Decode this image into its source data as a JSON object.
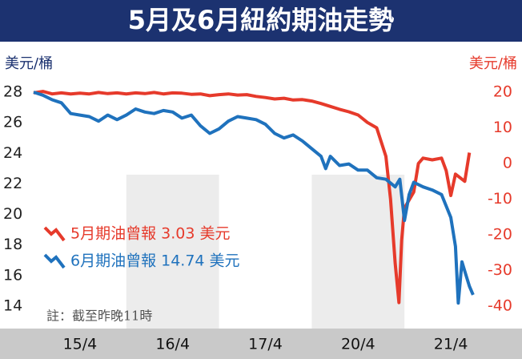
{
  "chart_data": {
    "type": "line",
    "title": "5月及6月紐約期油走勢",
    "y_label": "美元/桶",
    "y2_label": "美元/桶",
    "note": "註：截至昨晚11時",
    "xlim": [
      0,
      5
    ],
    "xticks": [
      {
        "value": 0.5,
        "label": "15/4"
      },
      {
        "value": 1.5,
        "label": "16/4"
      },
      {
        "value": 2.5,
        "label": "17/4"
      },
      {
        "value": 3.5,
        "label": "20/4"
      },
      {
        "value": 4.5,
        "label": "21/4"
      }
    ],
    "ylim": [
      14,
      28
    ],
    "yticks": [
      28,
      26,
      24,
      22,
      20,
      18,
      16,
      14
    ],
    "y2lim": [
      -40,
      20
    ],
    "y2ticks": [
      20,
      10,
      0,
      -10,
      -20,
      -30,
      -40
    ],
    "grid": false,
    "series": [
      {
        "name": "5月期油曾報 3.03 美元",
        "color": "#e63a2b",
        "axis": "y2",
        "x": [
          0,
          0.1,
          0.2,
          0.3,
          0.4,
          0.5,
          0.6,
          0.7,
          0.8,
          0.9,
          1.0,
          1.1,
          1.2,
          1.3,
          1.4,
          1.5,
          1.6,
          1.7,
          1.8,
          1.9,
          2.0,
          2.1,
          2.2,
          2.3,
          2.4,
          2.5,
          2.6,
          2.7,
          2.8,
          2.9,
          3.0,
          3.1,
          3.2,
          3.3,
          3.4,
          3.5,
          3.6,
          3.7,
          3.8,
          3.85,
          3.9,
          3.94,
          3.97,
          4.0,
          4.1,
          4.15,
          4.2,
          4.3,
          4.4,
          4.45,
          4.5,
          4.55,
          4.6,
          4.65,
          4.7
        ],
        "values": [
          19.8,
          20.2,
          19.5,
          19.8,
          19.5,
          19.7,
          19.5,
          19.9,
          19.6,
          19.8,
          19.5,
          19.8,
          19.6,
          19.9,
          19.5,
          19.8,
          19.7,
          19.4,
          19.5,
          19.0,
          19.3,
          19.5,
          19.2,
          19.3,
          18.8,
          18.5,
          18.1,
          18.3,
          17.8,
          17.9,
          17.5,
          16.8,
          16.0,
          15.2,
          14.5,
          13.6,
          11.5,
          10,
          2,
          -10,
          -28,
          -39,
          -21.5,
          -12.5,
          -8,
          0,
          1.5,
          1.0,
          1.5,
          -2,
          -9,
          -3,
          -4,
          -5,
          3.03
        ]
      },
      {
        "name": "6月期油曾報 14.74 美元",
        "color": "#1f72bd",
        "x": [
          0,
          0.1,
          0.2,
          0.3,
          0.4,
          0.5,
          0.6,
          0.7,
          0.8,
          0.9,
          1.0,
          1.1,
          1.2,
          1.3,
          1.4,
          1.5,
          1.6,
          1.7,
          1.8,
          1.9,
          2.0,
          2.1,
          2.2,
          2.3,
          2.4,
          2.5,
          2.6,
          2.7,
          2.8,
          2.9,
          3.0,
          3.1,
          3.15,
          3.2,
          3.3,
          3.4,
          3.5,
          3.6,
          3.7,
          3.8,
          3.9,
          3.95,
          4.0,
          4.05,
          4.1,
          4.2,
          4.3,
          4.4,
          4.5,
          4.55,
          4.58,
          4.62,
          4.66,
          4.7,
          4.74
        ],
        "values": [
          28.0,
          27.8,
          27.5,
          27.3,
          26.6,
          26.5,
          26.4,
          26.1,
          26.5,
          26.2,
          26.5,
          26.9,
          26.7,
          26.6,
          26.8,
          26.7,
          26.3,
          26.5,
          25.8,
          25.3,
          25.6,
          26.1,
          26.4,
          26.3,
          26.2,
          25.9,
          25.3,
          25.0,
          25.2,
          24.8,
          24.3,
          23.8,
          23.0,
          23.8,
          23.2,
          23.3,
          22.9,
          22.9,
          22.4,
          22.3,
          21.8,
          22.3,
          19.6,
          21.3,
          22.1,
          21.8,
          21.6,
          21.3,
          19.8,
          17.9,
          14.2,
          16.9,
          16.1,
          15.3,
          14.74
        ]
      }
    ]
  }
}
